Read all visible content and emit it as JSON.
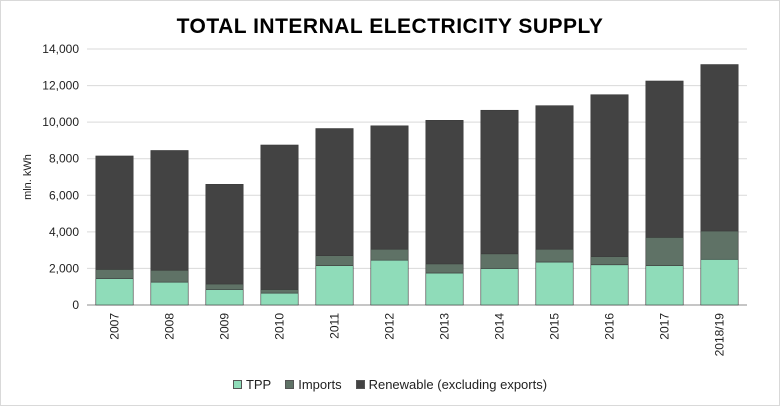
{
  "chart_data": {
    "type": "bar",
    "stacked": true,
    "title": "TOTAL INTERNAL ELECTRICITY SUPPLY",
    "xlabel": "",
    "ylabel": "mln. kWh",
    "ylim": [
      0,
      14000
    ],
    "yticks": [
      0,
      2000,
      4000,
      6000,
      8000,
      10000,
      12000,
      14000
    ],
    "ytick_labels": [
      "0",
      "2,000",
      "4,000",
      "6,000",
      "8,000",
      "10,000",
      "12,000",
      "14,000"
    ],
    "grid": true,
    "legend_position": "bottom",
    "categories": [
      "2007",
      "2008",
      "2009",
      "2010",
      "2011",
      "2012",
      "2013",
      "2014",
      "2015",
      "2016",
      "2017",
      "2018/19"
    ],
    "series": [
      {
        "name": "TPP",
        "color": "#8fdcb9",
        "values": [
          1450,
          1250,
          850,
          650,
          2150,
          2450,
          1750,
          2000,
          2350,
          2200,
          2150,
          2500
        ]
      },
      {
        "name": "Imports",
        "color": "#5f7266",
        "values": [
          500,
          650,
          300,
          200,
          550,
          600,
          500,
          800,
          700,
          450,
          1550,
          1550
        ]
      },
      {
        "name": "Renewable (excluding exports)",
        "color": "#434343",
        "values": [
          6200,
          6550,
          5450,
          7900,
          6950,
          6750,
          7850,
          7850,
          7850,
          8850,
          8550,
          9100
        ]
      }
    ]
  }
}
